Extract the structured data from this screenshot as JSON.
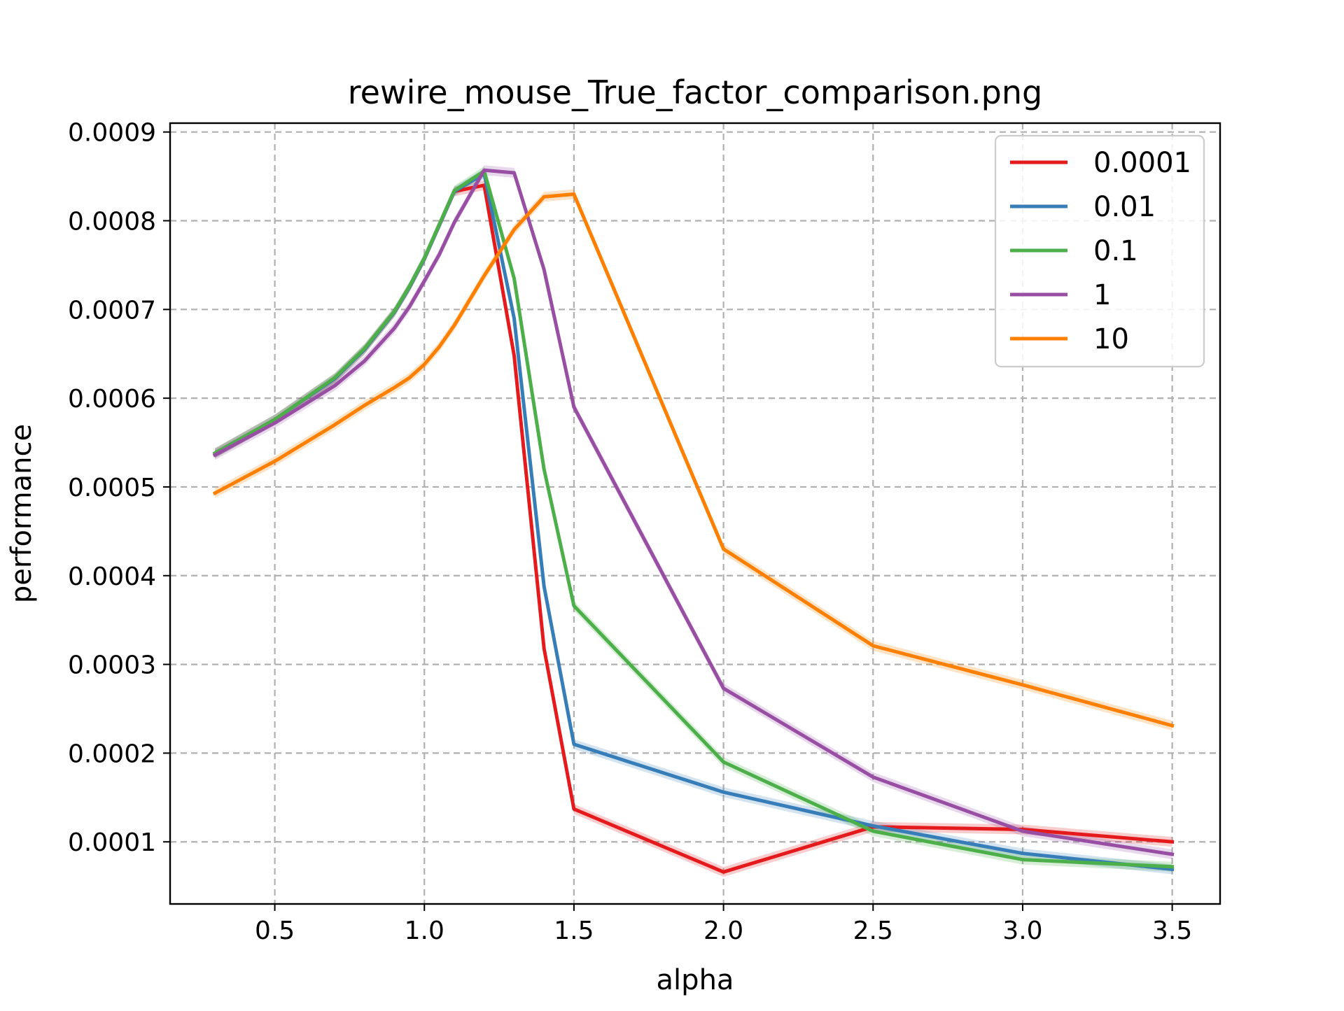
{
  "chart_data": {
    "type": "line",
    "title": "rewire_mouse_True_factor_comparison.png",
    "xlabel": "alpha",
    "ylabel": "performance",
    "xlim": [
      0.15,
      3.66
    ],
    "ylim": [
      3e-05,
      0.00091
    ],
    "grid": true,
    "legend_position": "top-right",
    "x_ticks": [
      {
        "value": 0.5,
        "label": "0.5"
      },
      {
        "value": 1.0,
        "label": "1.0"
      },
      {
        "value": 1.5,
        "label": "1.5"
      },
      {
        "value": 2.0,
        "label": "2.0"
      },
      {
        "value": 2.5,
        "label": "2.5"
      },
      {
        "value": 3.0,
        "label": "3.0"
      },
      {
        "value": 3.5,
        "label": "3.5"
      }
    ],
    "y_ticks": [
      {
        "value": 0.0001,
        "label": "0.0001"
      },
      {
        "value": 0.0002,
        "label": "0.0002"
      },
      {
        "value": 0.0003,
        "label": "0.0003"
      },
      {
        "value": 0.0004,
        "label": "0.0004"
      },
      {
        "value": 0.0005,
        "label": "0.0005"
      },
      {
        "value": 0.0006,
        "label": "0.0006"
      },
      {
        "value": 0.0007,
        "label": "0.0007"
      },
      {
        "value": 0.0008,
        "label": "0.0008"
      },
      {
        "value": 0.0009,
        "label": "0.0009"
      }
    ],
    "series": [
      {
        "name": "0.0001",
        "color": "#e41a1c",
        "x": [
          0.3,
          0.5,
          0.7,
          0.8,
          0.9,
          0.95,
          1.0,
          1.1,
          1.2,
          1.3,
          1.4,
          1.5,
          2.0,
          2.5,
          3.0,
          3.5
        ],
        "y": [
          0.000538,
          0.000576,
          0.000622,
          0.000655,
          0.000697,
          0.000725,
          0.000757,
          0.000833,
          0.00084,
          0.000648,
          0.000318,
          0.000137,
          6.6e-05,
          0.000117,
          0.000114,
          0.0001
        ]
      },
      {
        "name": "0.01",
        "color": "#377eb8",
        "x": [
          0.3,
          0.5,
          0.7,
          0.8,
          0.9,
          0.95,
          1.0,
          1.1,
          1.2,
          1.3,
          1.4,
          1.5,
          2.0,
          2.5,
          3.0,
          3.5
        ],
        "y": [
          0.000538,
          0.000576,
          0.000622,
          0.000655,
          0.000697,
          0.000725,
          0.000757,
          0.000833,
          0.000853,
          0.00069,
          0.000388,
          0.00021,
          0.000156,
          0.000118,
          8.7e-05,
          6.9e-05
        ]
      },
      {
        "name": "0.1",
        "color": "#4daf4a",
        "x": [
          0.3,
          0.5,
          0.7,
          0.8,
          0.9,
          0.95,
          1.0,
          1.1,
          1.2,
          1.3,
          1.4,
          1.5,
          2.0,
          2.5,
          3.0,
          3.5
        ],
        "y": [
          0.000538,
          0.000576,
          0.000623,
          0.000656,
          0.000698,
          0.000726,
          0.000758,
          0.000834,
          0.000856,
          0.000735,
          0.00052,
          0.000366,
          0.00019,
          0.000112,
          8e-05,
          7.2e-05
        ]
      },
      {
        "name": "1",
        "color": "#984ea3",
        "x": [
          0.3,
          0.5,
          0.7,
          0.8,
          0.9,
          0.95,
          1.0,
          1.05,
          1.1,
          1.2,
          1.3,
          1.4,
          1.5,
          2.0,
          2.5,
          3.0,
          3.5
        ],
        "y": [
          0.000536,
          0.000572,
          0.000614,
          0.000642,
          0.000679,
          0.000703,
          0.000732,
          0.000762,
          0.000798,
          0.000857,
          0.000854,
          0.000745,
          0.00059,
          0.000273,
          0.000173,
          0.000112,
          8.6e-05
        ]
      },
      {
        "name": "10",
        "color": "#ff7f00",
        "x": [
          0.3,
          0.5,
          0.7,
          0.8,
          0.9,
          0.95,
          1.0,
          1.05,
          1.1,
          1.2,
          1.3,
          1.4,
          1.5,
          2.0,
          2.5,
          3.0,
          3.5
        ],
        "y": [
          0.000493,
          0.000529,
          0.00057,
          0.000592,
          0.000612,
          0.000623,
          0.000638,
          0.000658,
          0.000682,
          0.000738,
          0.00079,
          0.000827,
          0.00083,
          0.00043,
          0.000321,
          0.000277,
          0.000231
        ]
      }
    ]
  }
}
